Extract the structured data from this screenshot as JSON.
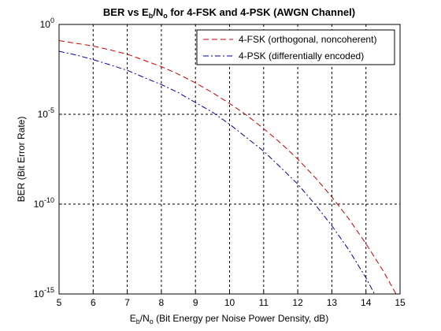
{
  "chart_data": {
    "type": "line",
    "title": {
      "prefix": "BER vs E",
      "sub1": "b",
      "mid": "/N",
      "sub2": "o",
      "suffix": " for 4-FSK and 4-PSK (AWGN Channel)"
    },
    "xlabel": {
      "prefix": "E",
      "sub1": "b",
      "mid": "/N",
      "sub2": "o",
      "suffix": " (Bit Energy per Noise Power Density, dB)"
    },
    "ylabel": "BER (Bit Error Rate)",
    "xlim": [
      5,
      15
    ],
    "ylim_log10": [
      -15,
      0
    ],
    "y_scale": "log",
    "grid": true,
    "legend_position": "top-right",
    "x_ticks": [
      "5",
      "6",
      "7",
      "8",
      "9",
      "10",
      "11",
      "12",
      "13",
      "14",
      "15"
    ],
    "y_ticks": [
      {
        "base": "10",
        "exp": "0",
        "log10": 0
      },
      {
        "base": "10",
        "exp": "-5",
        "log10": -5
      },
      {
        "base": "10",
        "exp": "-10",
        "log10": -10
      },
      {
        "base": "10",
        "exp": "-15",
        "log10": -15
      }
    ],
    "series": [
      {
        "name": "4-FSK (orthogonal, noncoherent)",
        "color": "#cc0000",
        "dash": "dashed",
        "x": [
          5,
          5.5,
          6,
          6.5,
          7,
          7.5,
          8,
          8.5,
          9,
          9.5,
          10,
          10.5,
          11,
          11.5,
          12,
          12.5,
          13,
          13.5,
          14,
          14.5,
          15
        ],
        "y": [
          0.126,
          0.089,
          0.063,
          0.038,
          0.022,
          0.01,
          0.0045,
          0.0017,
          0.00056,
          0.00016,
          4e-05,
          8.9e-06,
          1.6e-06,
          2.5e-07,
          3.2e-08,
          3.2e-09,
          2.5e-10,
          1.5e-11,
          6.3e-13,
          2e-14,
          4e-16
        ]
      },
      {
        "name": "4-PSK (differentially encoded)",
        "color": "#000099",
        "dash": "dashdot",
        "x": [
          5,
          5.5,
          6,
          6.5,
          7,
          7.5,
          8,
          8.5,
          9,
          9.5,
          10,
          10.5,
          11,
          11.5,
          12,
          12.5,
          13,
          13.5,
          14,
          14.5,
          15
        ],
        "y": [
          0.032,
          0.02,
          0.011,
          0.0056,
          0.0028,
          0.0011,
          0.00045,
          0.00016,
          4.5e-05,
          1.3e-05,
          2.8e-06,
          5e-07,
          8.9e-08,
          1.1e-08,
          1.3e-09,
          1e-10,
          6.3e-12,
          2.8e-13,
          7.9e-15,
          1.3e-16,
          1e-18
        ]
      }
    ]
  }
}
